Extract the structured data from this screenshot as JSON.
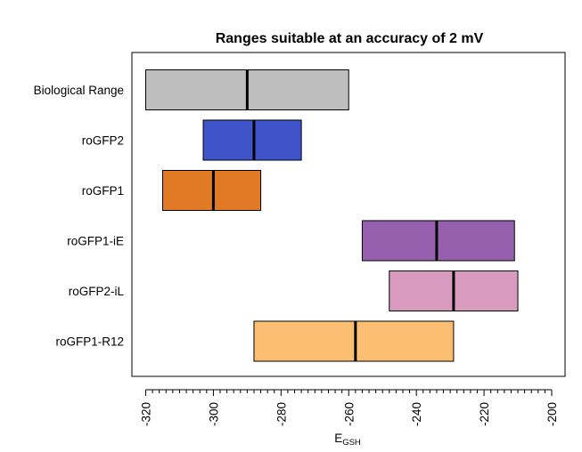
{
  "chart_data": {
    "type": "range-bar",
    "title": "Ranges suitable at an accuracy of 2 mV",
    "xlabel": "E",
    "xlabel_subscript": "GSH",
    "xlim": [
      -320,
      -200
    ],
    "xticks": [
      -320,
      -300,
      -280,
      -260,
      -240,
      -220,
      -200
    ],
    "xticks_minor_step": 2,
    "grid": false,
    "categories": [
      "Biological Range",
      "roGFP2",
      "roGFP1",
      "roGFP1-iE",
      "roGFP2-iL",
      "roGFP1-R12"
    ],
    "ranges": [
      {
        "name": "Biological Range",
        "low": -320,
        "mid": -290,
        "high": -260,
        "color": "#bebebe"
      },
      {
        "name": "roGFP2",
        "low": -303,
        "mid": -288,
        "high": -274,
        "color": "#3f54c9"
      },
      {
        "name": "roGFP1",
        "low": -315,
        "mid": -300,
        "high": -286,
        "color": "#e07a24"
      },
      {
        "name": "roGFP1-iE",
        "low": -256,
        "mid": -234,
        "high": -211,
        "color": "#9660ae"
      },
      {
        "name": "roGFP2-iL",
        "low": -248,
        "mid": -229,
        "high": -210,
        "color": "#d89abe"
      },
      {
        "name": "roGFP1-R12",
        "low": -288,
        "mid": -258,
        "high": -229,
        "color": "#fbbe72"
      }
    ]
  }
}
